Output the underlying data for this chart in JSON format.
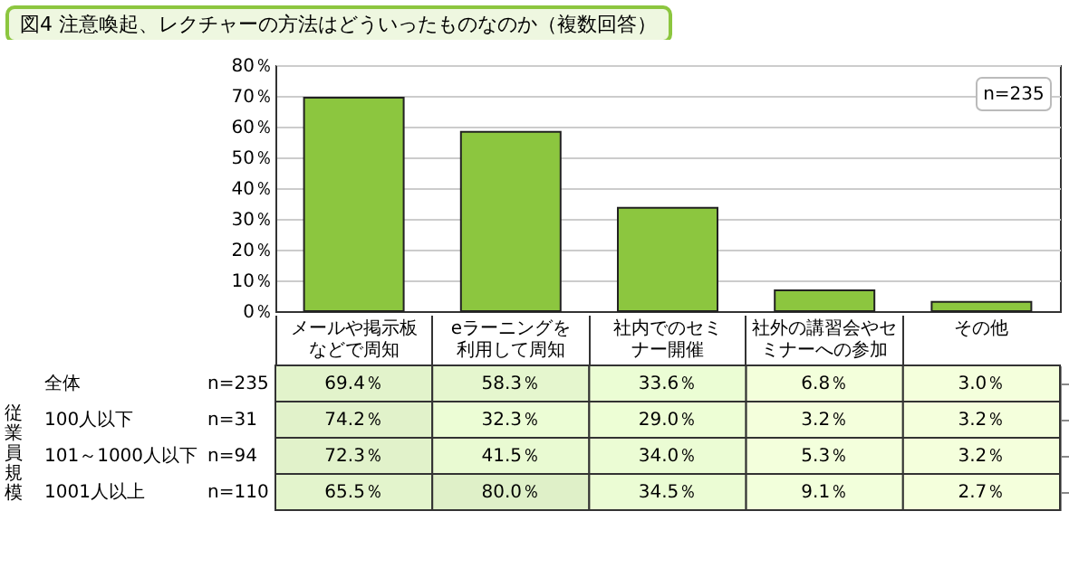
{
  "chart_data": [
    {
      "type": "bar",
      "title": "図4 注意喚起、レクチャーの方法はどういったものなのか（複数回答）",
      "categories": [
        null,
        null,
        null,
        null,
        null
      ],
      "values": [
        69.4,
        58.3,
        33.6,
        6.8,
        3.0
      ],
      "color": "#8cc63f",
      "ylim": [
        0,
        80
      ],
      "yticks": [
        {
          "value": 0,
          "label": "0％"
        },
        {
          "value": 10,
          "label": "10％"
        },
        {
          "value": 20,
          "label": "20％"
        },
        {
          "value": 30,
          "label": "30％"
        },
        {
          "value": 40,
          "label": "40％"
        },
        {
          "value": 50,
          "label": "50％"
        },
        {
          "value": 60,
          "label": "60％"
        },
        {
          "value": 70,
          "label": "70％"
        },
        {
          "value": 80,
          "label": "80％"
        }
      ],
      "grid": "y",
      "annotations": [
        "n=235"
      ]
    },
    {
      "type": "heatmap",
      "categories": [
        "メールや掲示板などで周知",
        "eラーニングを利用して周知",
        "社内でのセミナー開催",
        "社外の講習会やセミナーへの参加",
        "その他"
      ],
      "y_categories": [
        "全体",
        "100人以下",
        "101～1000人以下",
        "1001人以上"
      ],
      "y2_categories": [
        "n=235",
        "n=31",
        "n=94",
        "n=110"
      ],
      "ylabel": "従業員規模",
      "cells": [
        [
          69.4,
          58.3,
          33.6,
          6.8,
          3.0
        ],
        [
          74.2,
          32.3,
          29.0,
          3.2,
          3.2
        ],
        [
          72.3,
          41.5,
          34.0,
          5.3,
          3.2
        ],
        [
          65.5,
          80.0,
          34.5,
          9.1,
          2.7
        ]
      ],
      "cell_labels": [
        [
          "69.4％",
          "58.3％",
          "33.6％",
          "6.8％",
          "3.0％"
        ],
        [
          "74.2％",
          "32.3％",
          "29.0％",
          "3.2％",
          "3.2％"
        ],
        [
          "72.3％",
          "41.5％",
          "34.0％",
          "5.3％",
          "3.2％"
        ],
        [
          "65.5％",
          "80.0％",
          "34.5％",
          "9.1％",
          "2.7％"
        ]
      ]
    }
  ]
}
